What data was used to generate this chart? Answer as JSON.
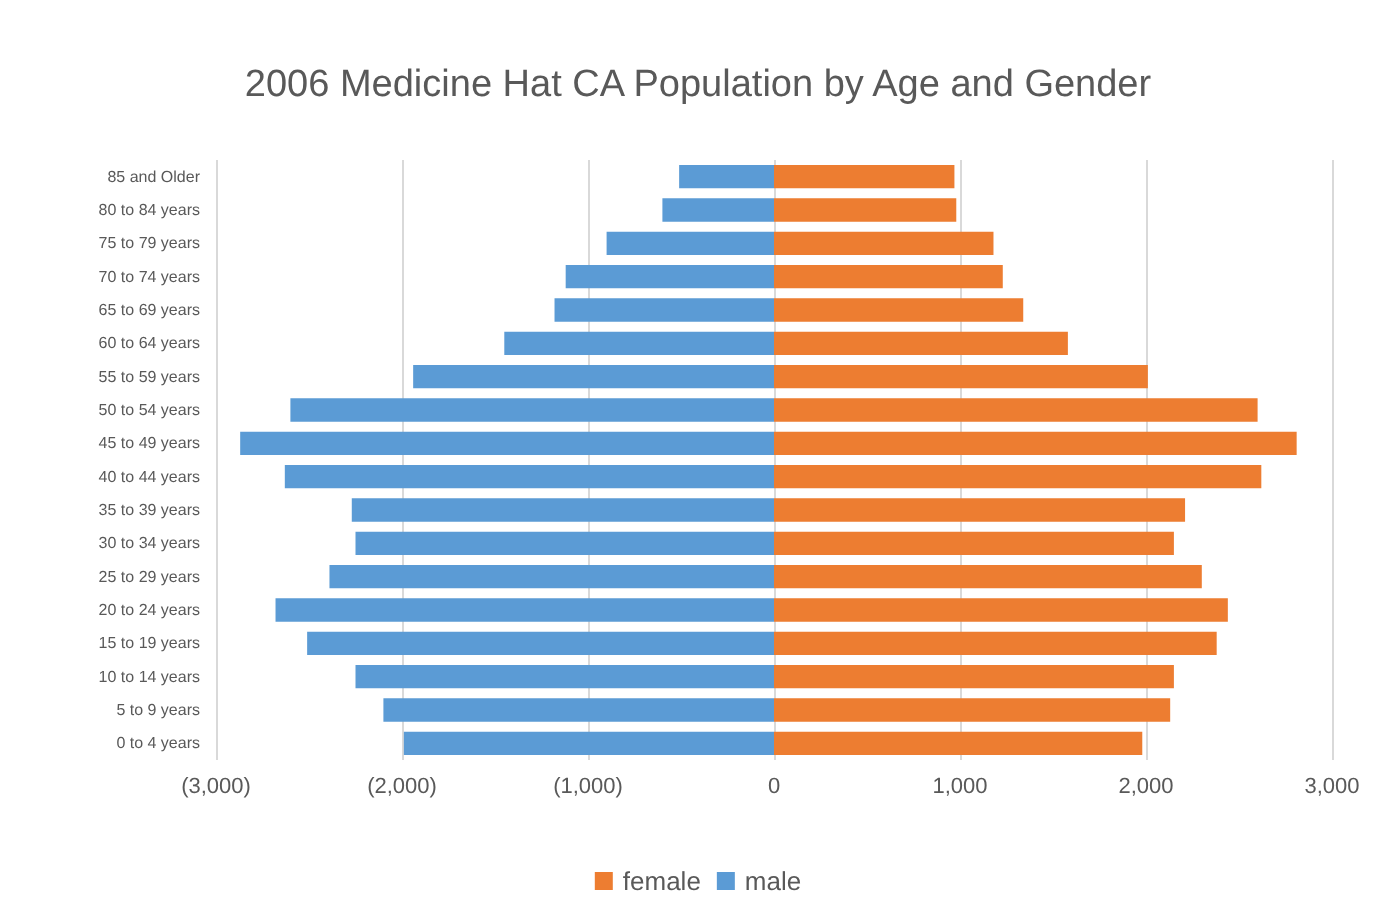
{
  "chart_data": {
    "type": "bar",
    "orientation": "horizontal",
    "title": "2006 Medicine Hat CA Population by Age and Gender",
    "categories": [
      "85 and Older",
      "80 to 84 years",
      "75 to 79 years",
      "70 to 74 years",
      "65 to 69 years",
      "60 to 64 years",
      "55 to 59 years",
      "50 to 54 years",
      "45 to 49 years",
      "40 to 44 years",
      "35 to 39 years",
      "30 to 34 years",
      "25 to 29 years",
      "20 to 24 years",
      "15 to 19 years",
      "10 to 14 years",
      "5 to 9 years",
      "0 to 4 years"
    ],
    "series": [
      {
        "name": "female",
        "color": "#ed7d31",
        "values": [
          970,
          980,
          1180,
          1230,
          1340,
          1580,
          2010,
          2600,
          2810,
          2620,
          2210,
          2150,
          2300,
          2440,
          2380,
          2150,
          2130,
          1980
        ]
      },
      {
        "name": "male",
        "color": "#5b9bd5",
        "values": [
          -510,
          -600,
          -900,
          -1120,
          -1180,
          -1450,
          -1940,
          -2600,
          -2870,
          -2630,
          -2270,
          -2250,
          -2390,
          -2680,
          -2510,
          -2250,
          -2100,
          -1990
        ]
      }
    ],
    "xlim": [
      -3000,
      3000
    ],
    "xticks": [
      {
        "value": -3000,
        "label": "(3,000)"
      },
      {
        "value": -2000,
        "label": "(2,000)"
      },
      {
        "value": -1000,
        "label": "(1,000)"
      },
      0,
      {
        "value": 1000,
        "label": "1,000"
      },
      {
        "value": 2000,
        "label": "2,000"
      },
      {
        "value": 3000,
        "label": "3,000"
      }
    ],
    "stacked": true,
    "grid": "x",
    "legend": "bottom"
  }
}
